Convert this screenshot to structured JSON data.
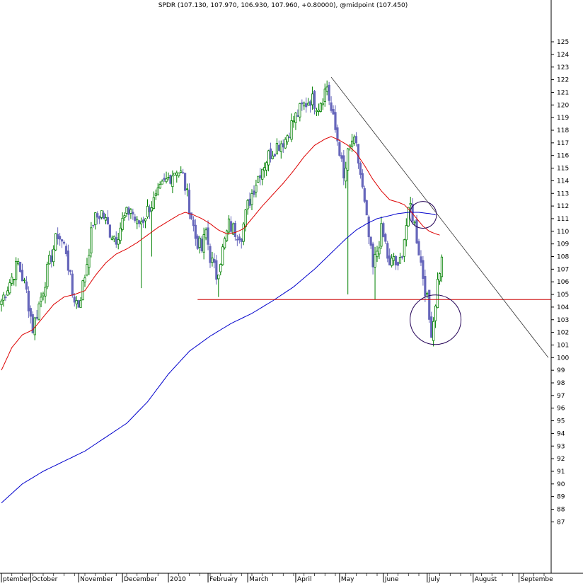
{
  "chart_data": {
    "type": "candlestick",
    "title": "SPDR (107.130, 107.970, 106.930, 107.960, +0.80000), @midpoint (107.450)",
    "y_axis": {
      "position": "right",
      "min": 86,
      "max": 126,
      "ticks": [
        87,
        88,
        89,
        90,
        91,
        92,
        93,
        94,
        95,
        96,
        97,
        98,
        99,
        100,
        101,
        102,
        103,
        104,
        105,
        106,
        107,
        108,
        109,
        110,
        111,
        112,
        113,
        114,
        115,
        116,
        117,
        118,
        119,
        120,
        121,
        122,
        123,
        124,
        125
      ]
    },
    "x_axis": {
      "months": [
        {
          "label": "ptember",
          "idx": 0
        },
        {
          "label": "October",
          "idx": 14
        },
        {
          "label": "November",
          "idx": 37
        },
        {
          "label": "December",
          "idx": 58
        },
        {
          "label": "2010",
          "idx": 80
        },
        {
          "label": "February",
          "idx": 99
        },
        {
          "label": "March",
          "idx": 118
        },
        {
          "label": "April",
          "idx": 141
        },
        {
          "label": "May",
          "idx": 162
        },
        {
          "label": "June",
          "idx": 183
        },
        {
          "label": "July",
          "idx": 204
        },
        {
          "label": "August",
          "idx": 226
        },
        {
          "label": "Septembe",
          "idx": 248
        }
      ]
    },
    "colors": {
      "up": "#008000",
      "down": "#6666bb",
      "ma_short": "#dd0000",
      "ma_long": "#0000cc",
      "support": "#cc0000",
      "trendline": "#333333",
      "circle": "#220055",
      "grid": "#000000"
    },
    "bars_anchors": [
      [
        0,
        104.5
      ],
      [
        4,
        106.0
      ],
      [
        8,
        107.5
      ],
      [
        12,
        105.2
      ],
      [
        15,
        102.3
      ],
      [
        19,
        104.8
      ],
      [
        23,
        107.5
      ],
      [
        27,
        109.8
      ],
      [
        31,
        108.5
      ],
      [
        34,
        105.0
      ],
      [
        37,
        104.2
      ],
      [
        40,
        106.5
      ],
      [
        44,
        110.8
      ],
      [
        48,
        111.5
      ],
      [
        52,
        110.0
      ],
      [
        55,
        109.5
      ],
      [
        58,
        110.8
      ],
      [
        62,
        111.8
      ],
      [
        65,
        110.5
      ],
      [
        68,
        111.0
      ],
      [
        71,
        112.0
      ],
      [
        74,
        112.5
      ],
      [
        77,
        113.5
      ],
      [
        80,
        114.2
      ],
      [
        84,
        115.0
      ],
      [
        87,
        114.3
      ],
      [
        90,
        112.0
      ],
      [
        93,
        109.5
      ],
      [
        96,
        108.5
      ],
      [
        98,
        110.0
      ],
      [
        100,
        108.0
      ],
      [
        103,
        106.5
      ],
      [
        106,
        108.5
      ],
      [
        109,
        110.5
      ],
      [
        112,
        110.0
      ],
      [
        115,
        109.8
      ],
      [
        118,
        112.0
      ],
      [
        121,
        113.5
      ],
      [
        124,
        114.8
      ],
      [
        128,
        116.0
      ],
      [
        132,
        116.8
      ],
      [
        136,
        117.3
      ],
      [
        140,
        118.8
      ],
      [
        144,
        119.8
      ],
      [
        148,
        120.5
      ],
      [
        152,
        120.0
      ],
      [
        156,
        121.5
      ],
      [
        158,
        119.5
      ],
      [
        160,
        118.0
      ],
      [
        162,
        116.5
      ],
      [
        164,
        114.0
      ],
      [
        166,
        116.0
      ],
      [
        168,
        117.2
      ],
      [
        170,
        116.5
      ],
      [
        172,
        114.5
      ],
      [
        174,
        112.0
      ],
      [
        176,
        109.5
      ],
      [
        178,
        107.0
      ],
      [
        180,
        108.5
      ],
      [
        182,
        110.0
      ],
      [
        184,
        109.0
      ],
      [
        186,
        107.0
      ],
      [
        188,
        108.0
      ],
      [
        190,
        106.8
      ],
      [
        192,
        108.5
      ],
      [
        194,
        110.5
      ],
      [
        196,
        112.0
      ],
      [
        198,
        110.5
      ],
      [
        200,
        108.5
      ],
      [
        202,
        106.5
      ],
      [
        204,
        104.5
      ],
      [
        205,
        103.0
      ],
      [
        206,
        102.2
      ],
      [
        207,
        103.0
      ],
      [
        208,
        104.5
      ],
      [
        209,
        106.0
      ],
      [
        210,
        107.0
      ],
      [
        211,
        107.96
      ]
    ],
    "ma_short_anchors": [
      [
        0,
        99.0
      ],
      [
        5,
        100.8
      ],
      [
        10,
        101.8
      ],
      [
        15,
        102.2
      ],
      [
        20,
        103.2
      ],
      [
        25,
        104.2
      ],
      [
        30,
        104.8
      ],
      [
        35,
        105.0
      ],
      [
        40,
        105.3
      ],
      [
        45,
        106.5
      ],
      [
        50,
        107.5
      ],
      [
        55,
        108.2
      ],
      [
        60,
        108.6
      ],
      [
        65,
        109.1
      ],
      [
        70,
        109.7
      ],
      [
        75,
        110.3
      ],
      [
        80,
        110.8
      ],
      [
        85,
        111.3
      ],
      [
        88,
        111.5
      ],
      [
        92,
        111.3
      ],
      [
        96,
        111.0
      ],
      [
        100,
        110.6
      ],
      [
        104,
        110.1
      ],
      [
        108,
        109.8
      ],
      [
        112,
        109.9
      ],
      [
        116,
        110.2
      ],
      [
        120,
        111.0
      ],
      [
        125,
        112.0
      ],
      [
        130,
        112.9
      ],
      [
        135,
        113.8
      ],
      [
        140,
        114.8
      ],
      [
        145,
        115.9
      ],
      [
        150,
        116.8
      ],
      [
        155,
        117.3
      ],
      [
        158,
        117.5
      ],
      [
        162,
        117.2
      ],
      [
        166,
        116.8
      ],
      [
        170,
        116.2
      ],
      [
        174,
        115.2
      ],
      [
        178,
        114.1
      ],
      [
        182,
        113.2
      ],
      [
        186,
        112.5
      ],
      [
        190,
        112.3
      ],
      [
        193,
        112.1
      ],
      [
        196,
        111.6
      ],
      [
        199,
        111.0
      ],
      [
        202,
        110.4
      ],
      [
        205,
        110.0
      ],
      [
        208,
        109.8
      ],
      [
        210,
        109.7
      ]
    ],
    "ma_long_anchors": [
      [
        0,
        88.5
      ],
      [
        10,
        90.0
      ],
      [
        20,
        91.0
      ],
      [
        30,
        91.8
      ],
      [
        40,
        92.6
      ],
      [
        50,
        93.7
      ],
      [
        60,
        94.8
      ],
      [
        70,
        96.5
      ],
      [
        80,
        98.7
      ],
      [
        90,
        100.5
      ],
      [
        100,
        101.7
      ],
      [
        110,
        102.7
      ],
      [
        120,
        103.5
      ],
      [
        130,
        104.5
      ],
      [
        140,
        105.6
      ],
      [
        150,
        107.0
      ],
      [
        160,
        108.6
      ],
      [
        165,
        109.4
      ],
      [
        170,
        110.1
      ],
      [
        175,
        110.6
      ],
      [
        180,
        111.0
      ],
      [
        185,
        111.2
      ],
      [
        190,
        111.4
      ],
      [
        195,
        111.5
      ],
      [
        200,
        111.5
      ],
      [
        205,
        111.4
      ],
      [
        208,
        111.3
      ]
    ],
    "support_level": 104.6,
    "support_start_idx": 94,
    "trendline": {
      "start": [
        158,
        122.2
      ],
      "end": [
        262,
        100.0
      ]
    },
    "circles": [
      {
        "idx": 202,
        "price": 111.3,
        "rx": 19,
        "ry": 19
      },
      {
        "idx": 208,
        "price": 103.0,
        "rx": 36,
        "ry": 35
      }
    ],
    "spikes": [
      {
        "idx": 166,
        "low": 105.0
      },
      {
        "idx": 67,
        "low": 105.5
      },
      {
        "idx": 72,
        "low": 108.0
      },
      {
        "idx": 179,
        "low": 104.6
      },
      {
        "idx": 104,
        "low": 104.8
      }
    ]
  }
}
